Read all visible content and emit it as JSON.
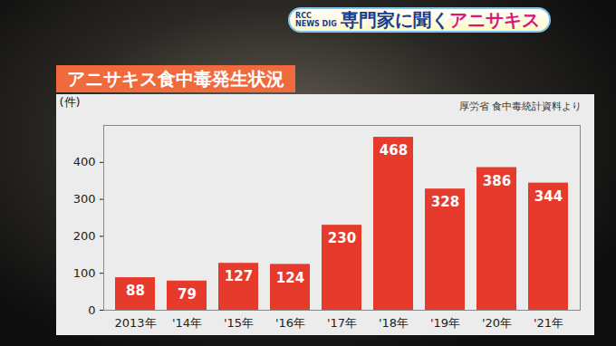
{
  "chart_data": {
    "type": "bar",
    "title": "アニサキス食中毒発生状況",
    "annotations": [
      "厚労省 食中毒統計資料より"
    ],
    "y_label": "(件)",
    "categories": [
      "2013年",
      "'14年",
      "'15年",
      "'16年",
      "'17年",
      "'18年",
      "'19年",
      "'20年",
      "'21年"
    ],
    "values": [
      88,
      79,
      127,
      124,
      230,
      468,
      328,
      386,
      344
    ],
    "color": "#e53a2c",
    "ylim": [
      0,
      500
    ],
    "yticks": [
      0,
      100,
      200,
      300,
      400
    ],
    "grid": false,
    "data_labels": true
  },
  "banner": {
    "logo": "RCC NEWS DIG",
    "parts": [
      {
        "text": "専門家に聞く",
        "color": "#1a3c8c"
      },
      {
        "text": "アニサキス",
        "color": "#d6187a"
      }
    ]
  }
}
